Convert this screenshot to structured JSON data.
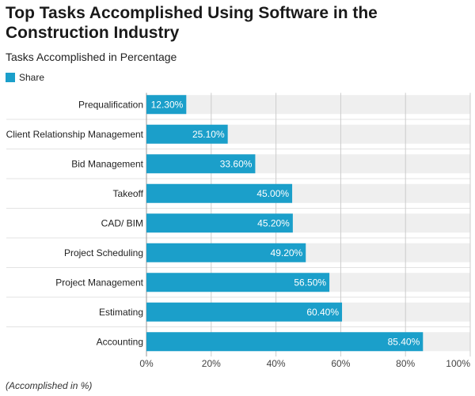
{
  "chart_data": {
    "type": "bar",
    "orientation": "horizontal",
    "title": "Top Tasks Accomplished Using Software in the Construction Industry",
    "subtitle": "Tasks Accomplished in Percentage",
    "legend": {
      "position": "top-left",
      "entries": [
        "Share"
      ]
    },
    "categories": [
      "Prequalification",
      "Client Relationship Management",
      "Bid Management",
      "Takeoff",
      "CAD/ BIM",
      "Project Scheduling",
      "Project Management",
      "Estimating",
      "Accounting"
    ],
    "series": [
      {
        "name": "Share",
        "values": [
          12.3,
          25.1,
          33.6,
          45.0,
          45.2,
          49.2,
          56.5,
          60.4,
          85.4
        ]
      }
    ],
    "value_labels": [
      "12.30%",
      "25.10%",
      "33.60%",
      "45.00%",
      "45.20%",
      "49.20%",
      "56.50%",
      "60.40%",
      "85.40%"
    ],
    "x_ticks": [
      0,
      20,
      40,
      60,
      80,
      100
    ],
    "x_tick_labels": [
      "0%",
      "20%",
      "40%",
      "60%",
      "80%",
      "100%"
    ],
    "xlim": [
      0,
      100
    ],
    "grid": true,
    "footnote": "(Accomplished in %)",
    "colors": {
      "bar": "#1b9fca",
      "band": "#efefef",
      "grid": "#cccccc"
    }
  }
}
